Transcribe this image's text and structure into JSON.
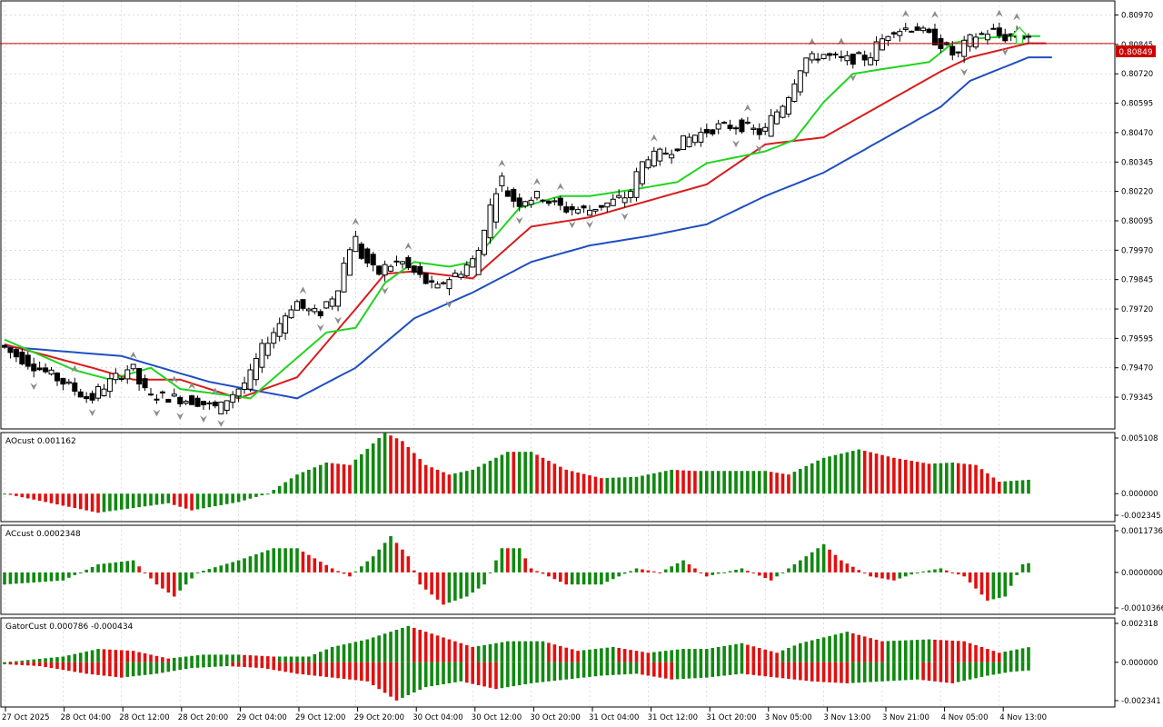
{
  "colors": {
    "background": "#ffffff",
    "frame": "#000000",
    "grid": "#c8c8c8",
    "bullCandle": "#ffffff",
    "bearCandle": "#000000",
    "jaw": "#1f4fbf",
    "teeth": "#d81c1c",
    "lips": "#22d322",
    "bidLine": "#cc0000",
    "barUp": "#118811",
    "barDown": "#e01010",
    "fractal": "#8c8c8c",
    "signalArrow": "#33cc33"
  },
  "main": {
    "bid_label": "0.80849",
    "bid": 0.80849,
    "arrow_icon": "up-arrow-icon",
    "y_range": [
      0.7921,
      0.8103
    ],
    "y_ticks": [
      "0.80970",
      "0.80845",
      "0.80720",
      "0.80595",
      "0.80470",
      "0.80345",
      "0.80220",
      "0.80095",
      "0.79970",
      "0.79845",
      "0.79720",
      "0.79595",
      "0.79470",
      "0.79345"
    ]
  },
  "ao": {
    "label": "AOcust 0.001162",
    "y_range": [
      -0.00234,
      0.00511
    ],
    "y_ticks": [
      "0.005108",
      "0.000000",
      "-0.002345"
    ]
  },
  "ac": {
    "label": "ACcust 0.0002348",
    "y_range": [
      -0.00104,
      0.00117
    ],
    "y_ticks": [
      "0.0011736",
      "0.0000000",
      "-0.0010366"
    ]
  },
  "gator": {
    "label": "GatorCust 0.000786 -0.000434",
    "y_range": [
      -0.00234,
      0.00232
    ],
    "y_ticks": [
      "0.002318",
      "0.000000",
      "-0.002341"
    ]
  },
  "x_labels": [
    "27 Oct 2025",
    "28 Oct 04:00",
    "28 Oct 12:00",
    "28 Oct 20:00",
    "29 Oct 04:00",
    "29 Oct 12:00",
    "29 Oct 20:00",
    "30 Oct 04:00",
    "30 Oct 12:00",
    "30 Oct 20:00",
    "31 Oct 04:00",
    "31 Oct 12:00",
    "31 Oct 20:00",
    "3 Nov 05:00",
    "3 Nov 13:00",
    "3 Nov 21:00",
    "4 Nov 05:00",
    "4 Nov 13:00"
  ],
  "chart_data": {
    "type": "candlestick",
    "anchors": [
      [
        0,
        0.7956
      ],
      [
        10,
        0.7942
      ],
      [
        15,
        0.7934
      ],
      [
        22,
        0.7947
      ],
      [
        25,
        0.7936
      ],
      [
        33,
        0.7933
      ],
      [
        37,
        0.793
      ],
      [
        42,
        0.7941
      ],
      [
        45,
        0.7956
      ],
      [
        50,
        0.7974
      ],
      [
        54,
        0.797
      ],
      [
        57,
        0.7978
      ],
      [
        60,
        0.8
      ],
      [
        64,
        0.7988
      ],
      [
        68,
        0.7992
      ],
      [
        71,
        0.7987
      ],
      [
        74,
        0.7981
      ],
      [
        78,
        0.7987
      ],
      [
        81,
        0.7993
      ],
      [
        85,
        0.8025
      ],
      [
        88,
        0.8018
      ],
      [
        92,
        0.802
      ],
      [
        96,
        0.8015
      ],
      [
        100,
        0.8014
      ],
      [
        104,
        0.8017
      ],
      [
        107,
        0.802
      ],
      [
        110,
        0.8035
      ],
      [
        114,
        0.8039
      ],
      [
        118,
        0.8045
      ],
      [
        122,
        0.8049
      ],
      [
        126,
        0.805
      ],
      [
        130,
        0.8047
      ],
      [
        134,
        0.806
      ],
      [
        137,
        0.8076
      ],
      [
        140,
        0.808
      ],
      [
        144,
        0.8078
      ],
      [
        148,
        0.8079
      ],
      [
        152,
        0.809
      ],
      [
        156,
        0.8092
      ],
      [
        160,
        0.8086
      ],
      [
        163,
        0.808
      ],
      [
        166,
        0.8087
      ],
      [
        169,
        0.809
      ],
      [
        171,
        0.8088
      ]
    ],
    "amplitude": 0.00048,
    "alligator": {
      "jaw": [
        [
          0,
          0.7956
        ],
        [
          20,
          0.7952
        ],
        [
          35,
          0.7941
        ],
        [
          50,
          0.7934
        ],
        [
          60,
          0.7947
        ],
        [
          70,
          0.7968
        ],
        [
          80,
          0.7979
        ],
        [
          90,
          0.7992
        ],
        [
          100,
          0.7999
        ],
        [
          110,
          0.8003
        ],
        [
          120,
          0.8008
        ],
        [
          130,
          0.802
        ],
        [
          140,
          0.803
        ],
        [
          150,
          0.8044
        ],
        [
          160,
          0.8058
        ],
        [
          165,
          0.8069
        ],
        [
          170,
          0.8074
        ],
        [
          175,
          0.8079
        ]
      ],
      "teeth": [
        [
          0,
          0.7957
        ],
        [
          15,
          0.7947
        ],
        [
          22,
          0.7942
        ],
        [
          30,
          0.7942
        ],
        [
          40,
          0.7934
        ],
        [
          50,
          0.7943
        ],
        [
          60,
          0.7972
        ],
        [
          65,
          0.7987
        ],
        [
          70,
          0.7988
        ],
        [
          80,
          0.7985
        ],
        [
          90,
          0.8007
        ],
        [
          100,
          0.8011
        ],
        [
          110,
          0.8018
        ],
        [
          120,
          0.8025
        ],
        [
          130,
          0.8042
        ],
        [
          140,
          0.8045
        ],
        [
          150,
          0.8059
        ],
        [
          160,
          0.8073
        ],
        [
          165,
          0.8079
        ],
        [
          170,
          0.8082
        ],
        [
          175,
          0.8085
        ]
      ],
      "lips": [
        [
          0,
          0.7959
        ],
        [
          12,
          0.7946
        ],
        [
          18,
          0.7942
        ],
        [
          25,
          0.7947
        ],
        [
          30,
          0.7938
        ],
        [
          42,
          0.7934
        ],
        [
          55,
          0.7962
        ],
        [
          60,
          0.7964
        ],
        [
          65,
          0.7983
        ],
        [
          70,
          0.7992
        ],
        [
          76,
          0.799
        ],
        [
          80,
          0.7992
        ],
        [
          88,
          0.8015
        ],
        [
          95,
          0.802
        ],
        [
          100,
          0.802
        ],
        [
          108,
          0.8023
        ],
        [
          115,
          0.8026
        ],
        [
          120,
          0.8034
        ],
        [
          130,
          0.8039
        ],
        [
          135,
          0.8044
        ],
        [
          140,
          0.806
        ],
        [
          145,
          0.8072
        ],
        [
          150,
          0.8074
        ],
        [
          158,
          0.8077
        ],
        [
          162,
          0.8085
        ],
        [
          166,
          0.8087
        ],
        [
          172,
          0.8088
        ]
      ]
    },
    "ao": [
      [
        0,
        0.0
      ],
      [
        4,
        -0.0004
      ],
      [
        10,
        -0.001
      ],
      [
        16,
        -0.0016
      ],
      [
        22,
        -0.0012
      ],
      [
        28,
        -0.0008
      ],
      [
        32,
        -0.0014
      ],
      [
        40,
        -0.0007
      ],
      [
        45,
        0.0
      ],
      [
        50,
        0.0016
      ],
      [
        55,
        0.0026
      ],
      [
        59,
        0.0024
      ],
      [
        65,
        0.0051
      ],
      [
        68,
        0.0044
      ],
      [
        72,
        0.0024
      ],
      [
        76,
        0.0016
      ],
      [
        80,
        0.002
      ],
      [
        86,
        0.0035
      ],
      [
        90,
        0.0035
      ],
      [
        96,
        0.002
      ],
      [
        102,
        0.0013
      ],
      [
        108,
        0.0014
      ],
      [
        114,
        0.002
      ],
      [
        118,
        0.0019
      ],
      [
        124,
        0.0019
      ],
      [
        130,
        0.0019
      ],
      [
        134,
        0.0016
      ],
      [
        140,
        0.003
      ],
      [
        146,
        0.0037
      ],
      [
        152,
        0.003
      ],
      [
        158,
        0.0025
      ],
      [
        162,
        0.0026
      ],
      [
        166,
        0.0024
      ],
      [
        170,
        0.001
      ],
      [
        175,
        0.00116
      ]
    ],
    "ac": [
      [
        0,
        -0.0003
      ],
      [
        10,
        -0.0002
      ],
      [
        16,
        0.0002
      ],
      [
        22,
        0.0003
      ],
      [
        26,
        -0.0003
      ],
      [
        29,
        -0.0006
      ],
      [
        33,
        0.0
      ],
      [
        40,
        0.0003
      ],
      [
        46,
        0.0006
      ],
      [
        50,
        0.0006
      ],
      [
        56,
        0.0001
      ],
      [
        59,
        -0.0001
      ],
      [
        63,
        0.0004
      ],
      [
        66,
        0.0009
      ],
      [
        69,
        0.0004
      ],
      [
        71,
        -0.0003
      ],
      [
        75,
        -0.0008
      ],
      [
        79,
        -0.0006
      ],
      [
        82,
        -0.0003
      ],
      [
        85,
        0.0006
      ],
      [
        88,
        0.0006
      ],
      [
        90,
        0.0001
      ],
      [
        96,
        -0.0003
      ],
      [
        102,
        -0.0003
      ],
      [
        108,
        0.0001
      ],
      [
        112,
        0.0
      ],
      [
        116,
        0.0003
      ],
      [
        120,
        -0.0001
      ],
      [
        126,
        0.0001
      ],
      [
        131,
        -0.0002
      ],
      [
        136,
        0.0003
      ],
      [
        140,
        0.0007
      ],
      [
        143,
        0.0003
      ],
      [
        148,
        -0.0001
      ],
      [
        152,
        -0.0002
      ],
      [
        156,
        0.0
      ],
      [
        160,
        0.0001
      ],
      [
        164,
        -0.0001
      ],
      [
        168,
        -0.0007
      ],
      [
        171,
        -0.0006
      ],
      [
        174,
        0.0002
      ],
      [
        175,
        0.00023
      ]
    ],
    "gator_up": [
      [
        0,
        0.0
      ],
      [
        10,
        0.0003
      ],
      [
        16,
        0.0007
      ],
      [
        22,
        0.0006
      ],
      [
        28,
        0.0002
      ],
      [
        34,
        0.0004
      ],
      [
        40,
        0.0004
      ],
      [
        46,
        0.0003
      ],
      [
        52,
        0.0003
      ],
      [
        56,
        0.0008
      ],
      [
        62,
        0.0012
      ],
      [
        69,
        0.0019
      ],
      [
        74,
        0.0014
      ],
      [
        80,
        0.0008
      ],
      [
        86,
        0.0011
      ],
      [
        92,
        0.0011
      ],
      [
        98,
        0.0006
      ],
      [
        104,
        0.0008
      ],
      [
        110,
        0.0005
      ],
      [
        116,
        0.0007
      ],
      [
        120,
        0.0007
      ],
      [
        126,
        0.001
      ],
      [
        132,
        0.0005
      ],
      [
        136,
        0.001
      ],
      [
        144,
        0.0016
      ],
      [
        150,
        0.0011
      ],
      [
        158,
        0.0012
      ],
      [
        164,
        0.0011
      ],
      [
        170,
        0.0005
      ],
      [
        175,
        0.00079
      ]
    ],
    "gator_down": [
      [
        0,
        -0.0001
      ],
      [
        6,
        -0.0002
      ],
      [
        14,
        -0.0006
      ],
      [
        20,
        -0.0008
      ],
      [
        26,
        -0.0006
      ],
      [
        32,
        -0.0003
      ],
      [
        38,
        -0.0002
      ],
      [
        44,
        -0.0003
      ],
      [
        50,
        -0.0006
      ],
      [
        56,
        -0.0008
      ],
      [
        62,
        -0.001
      ],
      [
        67,
        -0.002
      ],
      [
        72,
        -0.0013
      ],
      [
        78,
        -0.001
      ],
      [
        84,
        -0.0014
      ],
      [
        90,
        -0.0011
      ],
      [
        96,
        -0.0009
      ],
      [
        102,
        -0.0007
      ],
      [
        108,
        -0.0006
      ],
      [
        114,
        -0.0009
      ],
      [
        120,
        -0.0008
      ],
      [
        126,
        -0.0006
      ],
      [
        132,
        -0.0008
      ],
      [
        138,
        -0.001
      ],
      [
        144,
        -0.0011
      ],
      [
        150,
        -0.001
      ],
      [
        156,
        -0.0009
      ],
      [
        162,
        -0.0011
      ],
      [
        168,
        -0.0007
      ],
      [
        172,
        -0.0005
      ],
      [
        175,
        -0.00043
      ]
    ]
  }
}
